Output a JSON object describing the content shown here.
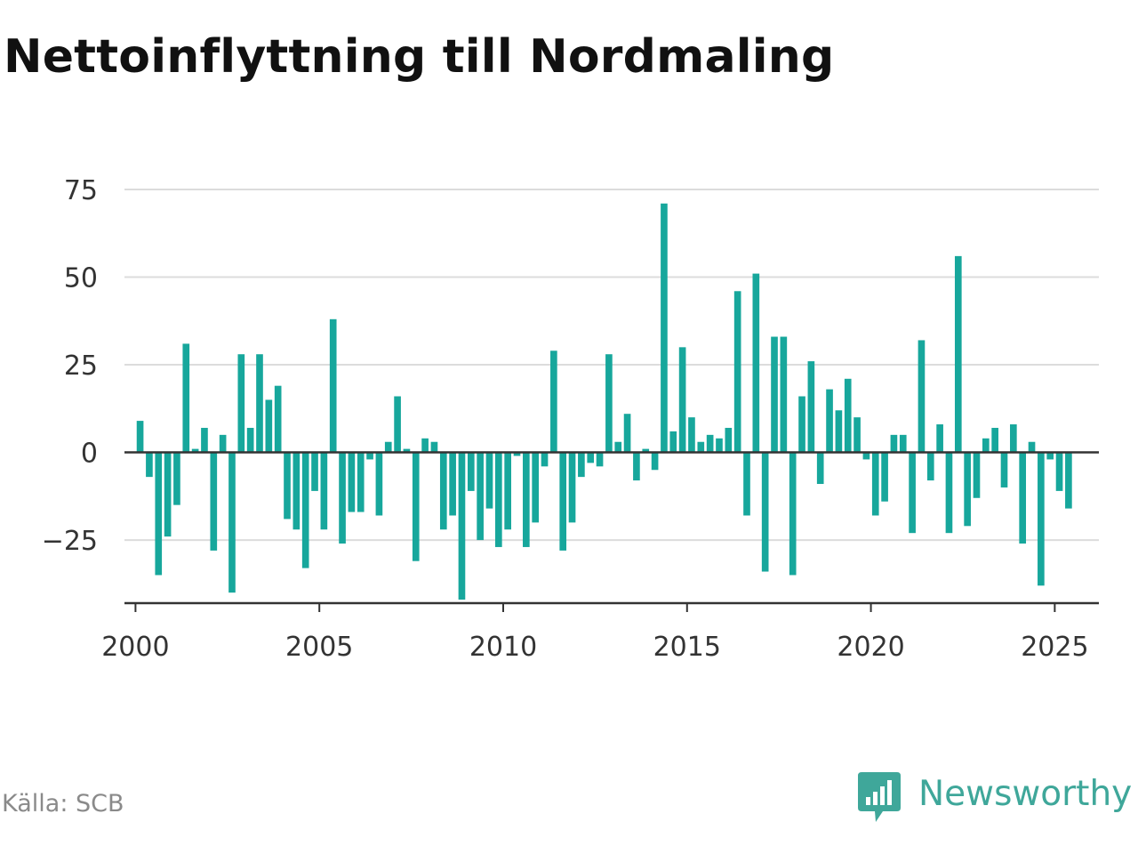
{
  "title": "Nettoinflyttning till Nordmaling",
  "source": "Källa: SCB",
  "brand": "Newsworthy",
  "colors": {
    "bar": "#17a79c",
    "grid": "#dcdcdc",
    "axis": "#333333",
    "brand": "#3fa79a"
  },
  "chart_data": {
    "type": "bar",
    "grid": true,
    "ylim": [
      -43,
      75
    ],
    "yticks": [
      75,
      50,
      25,
      0,
      -25
    ],
    "ytick_labels": [
      "75",
      "50",
      "25",
      "0",
      "−25"
    ],
    "xlim": [
      1999.7,
      2026.2
    ],
    "xticks": [
      2000,
      2005,
      2010,
      2015,
      2020,
      2025
    ],
    "xtick_labels": [
      "2000",
      "2005",
      "2010",
      "2015",
      "2020",
      "2025"
    ],
    "series": [
      {
        "x": [
          "2000-Q1",
          "2000-Q2",
          "2000-Q3",
          "2000-Q4",
          "2001-Q1",
          "2001-Q2",
          "2001-Q3",
          "2001-Q4",
          "2002-Q1",
          "2002-Q2",
          "2002-Q3",
          "2002-Q4",
          "2003-Q1",
          "2003-Q2",
          "2003-Q3",
          "2003-Q4",
          "2004-Q1",
          "2004-Q2",
          "2004-Q3",
          "2004-Q4",
          "2005-Q1",
          "2005-Q2",
          "2005-Q3",
          "2005-Q4",
          "2006-Q1",
          "2006-Q2",
          "2006-Q3",
          "2006-Q4",
          "2007-Q1",
          "2007-Q2",
          "2007-Q3",
          "2007-Q4",
          "2008-Q1",
          "2008-Q2",
          "2008-Q3",
          "2008-Q4",
          "2009-Q1",
          "2009-Q2",
          "2009-Q3",
          "2009-Q4",
          "2010-Q1",
          "2010-Q2",
          "2010-Q3",
          "2010-Q4",
          "2011-Q1",
          "2011-Q2",
          "2011-Q3",
          "2011-Q4",
          "2012-Q1",
          "2012-Q2",
          "2012-Q3",
          "2012-Q4",
          "2013-Q1",
          "2013-Q2",
          "2013-Q3",
          "2013-Q4",
          "2014-Q1",
          "2014-Q2",
          "2014-Q3",
          "2014-Q4",
          "2015-Q1",
          "2015-Q2",
          "2015-Q3",
          "2015-Q4",
          "2016-Q1",
          "2016-Q2",
          "2016-Q3",
          "2016-Q4",
          "2017-Q1",
          "2017-Q2",
          "2017-Q3",
          "2017-Q4",
          "2018-Q1",
          "2018-Q2",
          "2018-Q3",
          "2018-Q4",
          "2019-Q1",
          "2019-Q2",
          "2019-Q3",
          "2019-Q4",
          "2020-Q1",
          "2020-Q2",
          "2020-Q3",
          "2020-Q4",
          "2021-Q1",
          "2021-Q2",
          "2021-Q3",
          "2021-Q4",
          "2022-Q1",
          "2022-Q2",
          "2022-Q3",
          "2022-Q4",
          "2023-Q1",
          "2023-Q2",
          "2023-Q3",
          "2023-Q4",
          "2024-Q1",
          "2024-Q2",
          "2024-Q3",
          "2024-Q4",
          "2025-Q1",
          "2025-Q2"
        ],
        "values": [
          9,
          -7,
          -35,
          -24,
          -15,
          31,
          1,
          7,
          -28,
          5,
          -40,
          28,
          7,
          28,
          15,
          19,
          -19,
          -22,
          -33,
          -11,
          -22,
          38,
          -26,
          -17,
          -17,
          -2,
          -18,
          3,
          16,
          1,
          -31,
          4,
          3,
          -22,
          -18,
          -42,
          -11,
          -25,
          -16,
          -27,
          -22,
          -1,
          -27,
          -20,
          -4,
          29,
          -28,
          -20,
          -7,
          -3,
          -4,
          28,
          3,
          11,
          -8,
          1,
          -5,
          71,
          6,
          30,
          10,
          3,
          5,
          4,
          7,
          46,
          -18,
          51,
          -34,
          33,
          33,
          -35,
          16,
          26,
          -9,
          18,
          12,
          21,
          10,
          -2,
          -18,
          -14,
          5,
          5,
          -23,
          32,
          -8,
          8,
          -23,
          56,
          -21,
          -13,
          4,
          7,
          -10,
          8,
          -26,
          3,
          -38,
          -2,
          -11,
          -16
        ]
      }
    ]
  }
}
